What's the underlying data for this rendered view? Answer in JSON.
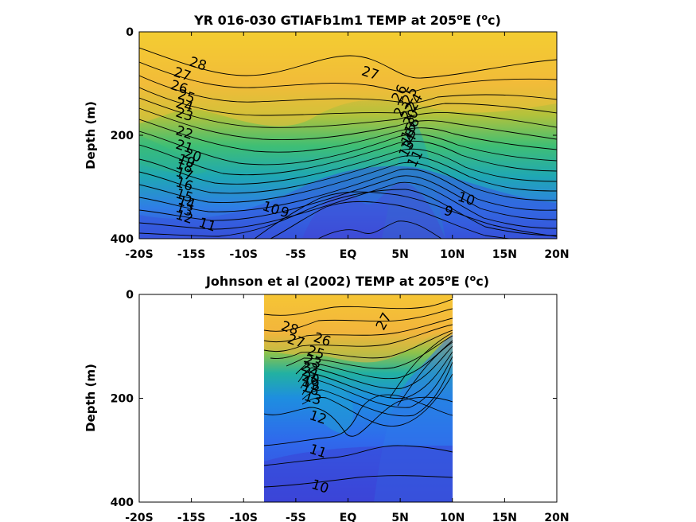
{
  "chart_data": [
    {
      "type": "contour",
      "title_main": "YR 016-030 GTIAFb1m1 TEMP at 205",
      "title_deg_sup": "o",
      "title_e": "E (",
      "title_unit_sup": "o",
      "title_unit_tail": "c)",
      "ylabel": "Depth (m)",
      "xlim": [
        -20,
        20
      ],
      "ylim": [
        0,
        400
      ],
      "x_ticks": [
        -20,
        -15,
        -10,
        -5,
        0,
        5,
        10,
        15,
        20
      ],
      "x_tick_labels": [
        "-20S",
        "-15S",
        "-10S",
        "-5S",
        "EQ",
        "5N",
        "10N",
        "15N",
        "20N"
      ],
      "y_ticks": [
        0,
        200,
        400
      ],
      "y_tick_labels": [
        "0",
        "200",
        "400"
      ],
      "data_extent_x": [
        -20,
        20
      ],
      "contour_levels": [
        9,
        10,
        11,
        12,
        13,
        14,
        15,
        16,
        17,
        18,
        19,
        20,
        21,
        22,
        23,
        24,
        25,
        26,
        27,
        28
      ],
      "contour_labels": [
        {
          "text": "28",
          "x": -14.5,
          "y": 70
        },
        {
          "text": "27",
          "x": -16.0,
          "y": 90
        },
        {
          "text": "26",
          "x": -16.3,
          "y": 115
        },
        {
          "text": "25",
          "x": -15.6,
          "y": 133
        },
        {
          "text": "24",
          "x": -15.8,
          "y": 150
        },
        {
          "text": "23",
          "x": -15.8,
          "y": 168
        },
        {
          "text": "22",
          "x": -15.8,
          "y": 203
        },
        {
          "text": "21",
          "x": -15.8,
          "y": 230
        },
        {
          "text": "20",
          "x": -15.0,
          "y": 247
        },
        {
          "text": "19",
          "x": -15.6,
          "y": 258
        },
        {
          "text": "18",
          "x": -15.8,
          "y": 268
        },
        {
          "text": "17",
          "x": -15.8,
          "y": 283
        },
        {
          "text": "16",
          "x": -15.8,
          "y": 303
        },
        {
          "text": "15",
          "x": -15.8,
          "y": 325
        },
        {
          "text": "14",
          "x": -15.6,
          "y": 338
        },
        {
          "text": "13",
          "x": -15.8,
          "y": 352
        },
        {
          "text": "12",
          "x": -15.8,
          "y": 366
        },
        {
          "text": "11",
          "x": -13.6,
          "y": 381
        },
        {
          "text": "10",
          "x": -7.5,
          "y": 349
        },
        {
          "text": "9",
          "x": -6.2,
          "y": 357
        },
        {
          "text": "27",
          "x": 2.0,
          "y": 88
        },
        {
          "text": "26",
          "x": 5.3,
          "y": 123
        },
        {
          "text": "25",
          "x": 6.3,
          "y": 127
        },
        {
          "text": "24",
          "x": 6.8,
          "y": 140
        },
        {
          "text": "23",
          "x": 5.5,
          "y": 152
        },
        {
          "text": "22",
          "x": 6.2,
          "y": 158
        },
        {
          "text": "20",
          "x": 6.4,
          "y": 170
        },
        {
          "text": "18",
          "x": 6.5,
          "y": 186
        },
        {
          "text": "16",
          "x": 6.2,
          "y": 197
        },
        {
          "text": "15",
          "x": 6.2,
          "y": 207
        },
        {
          "text": "14",
          "x": 6.2,
          "y": 217
        },
        {
          "text": "13",
          "x": 6.0,
          "y": 230
        },
        {
          "text": "11",
          "x": 6.8,
          "y": 249
        },
        {
          "text": "10",
          "x": 11.2,
          "y": 331
        },
        {
          "text": "9",
          "x": 9.5,
          "y": 355
        }
      ]
    },
    {
      "type": "contour",
      "title_main": "Johnson et al (2002) TEMP at 205",
      "title_deg_sup": "o",
      "title_e": "E (",
      "title_unit_sup": "o",
      "title_unit_tail": "c)",
      "ylabel": "Depth (m)",
      "xlim": [
        -20,
        20
      ],
      "ylim": [
        0,
        400
      ],
      "x_ticks": [
        -20,
        -15,
        -10,
        -5,
        0,
        5,
        10,
        15,
        20
      ],
      "x_tick_labels": [
        "-20S",
        "-15S",
        "-10S",
        "-5S",
        "EQ",
        "5N",
        "10N",
        "15N",
        "20N"
      ],
      "y_ticks": [
        0,
        200,
        400
      ],
      "y_tick_labels": [
        "0",
        "200",
        "400"
      ],
      "data_extent_x": [
        -8,
        10
      ],
      "contour_levels": [
        10,
        11,
        12,
        13,
        14,
        15,
        16,
        17,
        18,
        19,
        20,
        21,
        22,
        23,
        24,
        25,
        26,
        27,
        28
      ],
      "contour_labels": [
        {
          "text": "28",
          "x": -5.7,
          "y": 73
        },
        {
          "text": "27",
          "x": -5.1,
          "y": 98
        },
        {
          "text": "26",
          "x": -2.6,
          "y": 95
        },
        {
          "text": "25",
          "x": -3.2,
          "y": 120
        },
        {
          "text": "23",
          "x": -3.5,
          "y": 138
        },
        {
          "text": "22",
          "x": -3.8,
          "y": 150
        },
        {
          "text": "21",
          "x": -3.7,
          "y": 160
        },
        {
          "text": "20",
          "x": -3.7,
          "y": 170
        },
        {
          "text": "19",
          "x": -3.7,
          "y": 180
        },
        {
          "text": "18",
          "x": -3.7,
          "y": 190
        },
        {
          "text": "13",
          "x": -3.5,
          "y": 208
        },
        {
          "text": "12",
          "x": -3.0,
          "y": 245
        },
        {
          "text": "11",
          "x": -3.0,
          "y": 310
        },
        {
          "text": "10",
          "x": -2.8,
          "y": 378
        },
        {
          "text": "27",
          "x": 3.8,
          "y": 56
        }
      ]
    }
  ]
}
